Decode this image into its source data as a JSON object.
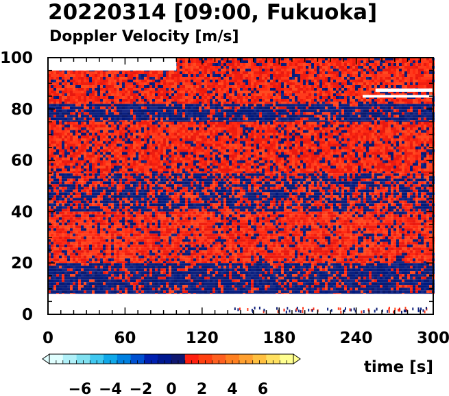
{
  "chart_data": {
    "type": "heatmap",
    "title": "20220314 [09:00, Fukuoka]",
    "subtitle": "Doppler Velocity [m/s]",
    "xlabel": "time [s]",
    "ylabel": "",
    "xlim": [
      0,
      300
    ],
    "ylim": [
      0,
      100
    ],
    "x_ticks": [
      "0",
      "60",
      "120",
      "180",
      "240",
      "300"
    ],
    "x_tick_values": [
      0,
      60,
      120,
      180,
      240,
      300
    ],
    "y_ticks": [
      "0",
      "20",
      "40",
      "60",
      "80",
      "100"
    ],
    "y_tick_values": [
      0,
      20,
      40,
      60,
      80,
      100
    ],
    "colorbar": {
      "range": [
        -8,
        8
      ],
      "tick_labels": [
        "−6",
        "−4",
        "−2",
        "0",
        "2",
        "4",
        "6"
      ],
      "tick_values": [
        -6,
        -4,
        -2,
        0,
        2,
        4,
        6
      ],
      "colors": [
        "#e0ffff",
        "#b0f0f8",
        "#80e0f0",
        "#40c8f0",
        "#10a8e8",
        "#0080e0",
        "#0050d0",
        "#0020b0",
        "#001890",
        "#101870",
        "#ff2010",
        "#ff4010",
        "#ff6020",
        "#ff8020",
        "#ffa030",
        "#ffc040",
        "#ffe060",
        "#ffff90"
      ]
    },
    "layers": [
      {
        "from_height": 0,
        "to_height": 8,
        "dominant_sign": "none",
        "description_values": "sparse returns near 0 m/s after t≈140 s"
      },
      {
        "from_height": 8,
        "to_height": 20,
        "dominant_sign": "negative",
        "velocity": -1.5
      },
      {
        "from_height": 20,
        "to_height": 40,
        "dominant_sign": "positive",
        "velocity": 1.0
      },
      {
        "from_height": 40,
        "to_height": 55,
        "dominant_sign": "mixed",
        "velocity": -0.5
      },
      {
        "from_height": 55,
        "to_height": 75,
        "dominant_sign": "positive",
        "velocity": 1.2
      },
      {
        "from_height": 75,
        "to_height": 82,
        "dominant_sign": "negative",
        "velocity": -1.2
      },
      {
        "from_height": 82,
        "to_height": 100,
        "dominant_sign": "positive",
        "velocity": 1.0
      }
    ]
  }
}
